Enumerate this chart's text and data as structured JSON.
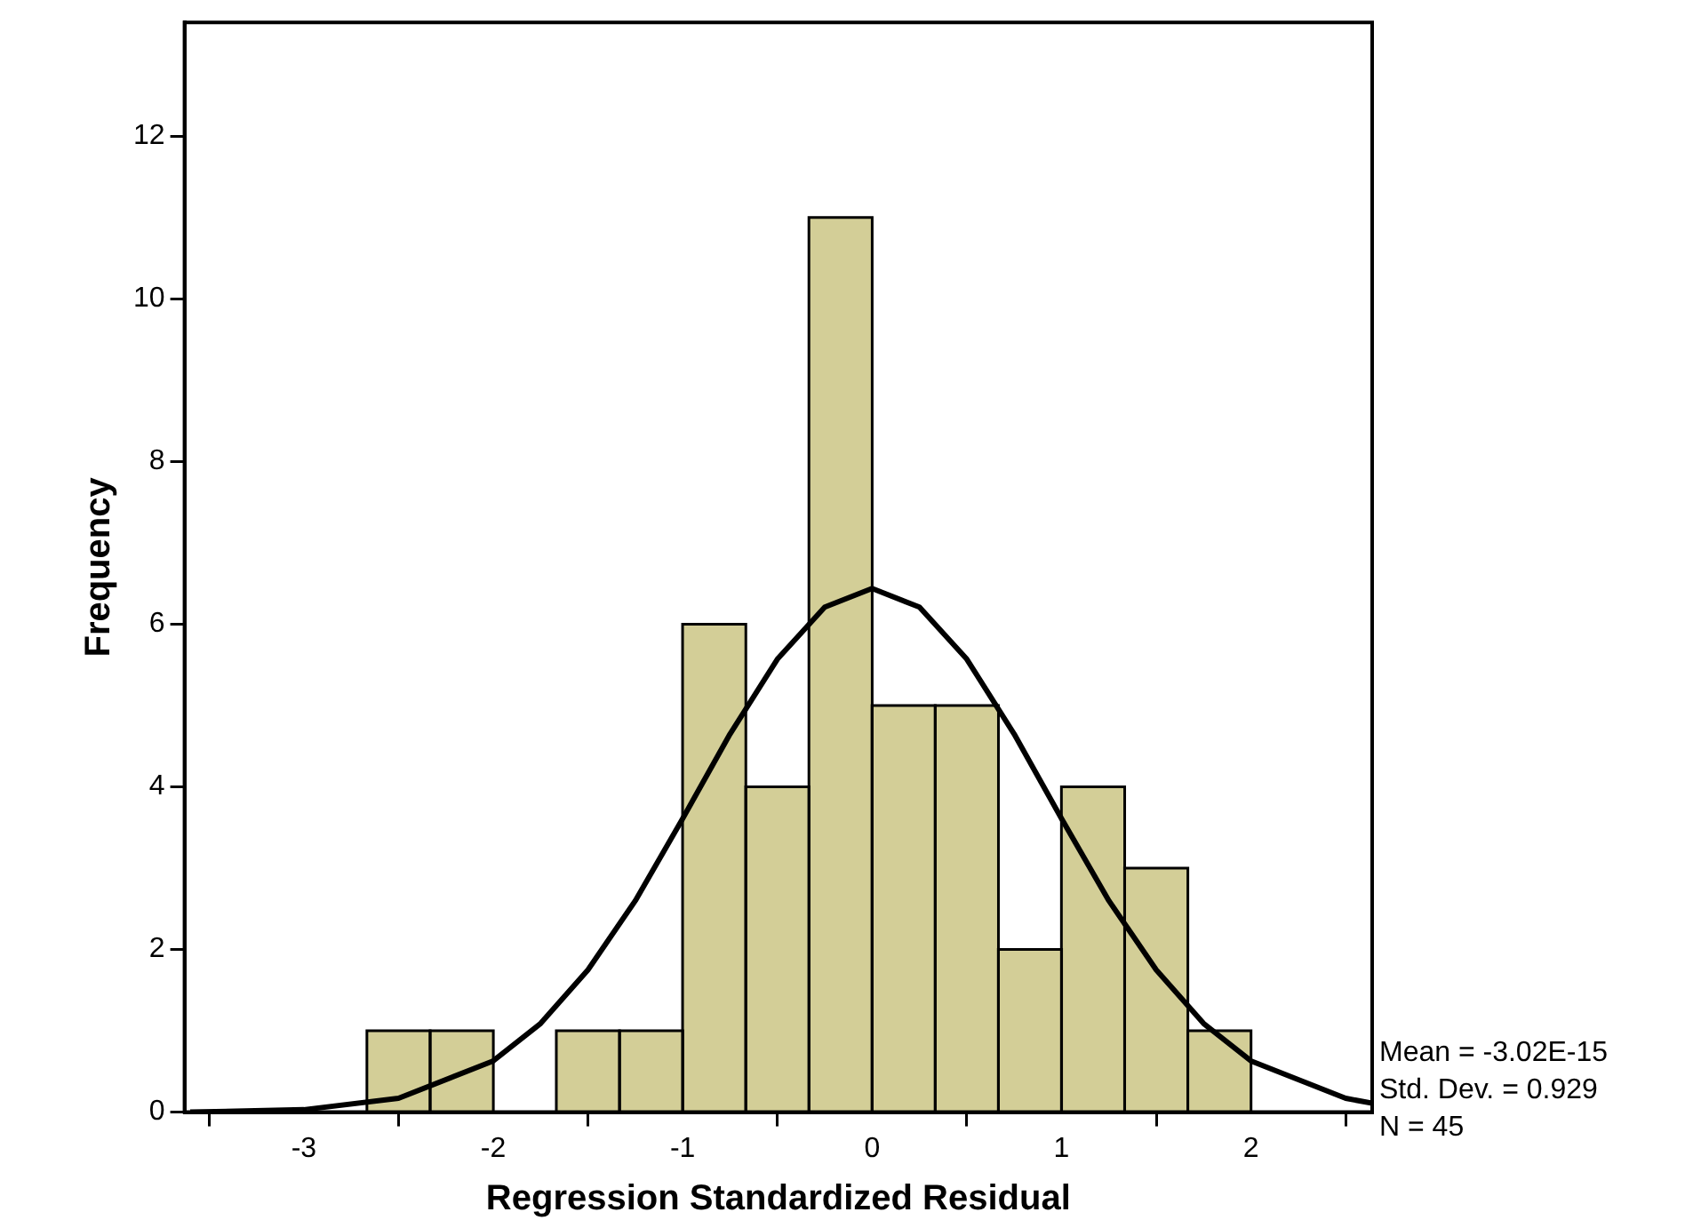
{
  "chart_data": {
    "type": "histogram",
    "xlabel": "Regression Standardized Residual",
    "ylabel": "Frequency",
    "bins": [
      -2.667,
      -2.333,
      -2,
      -1.667,
      -1.333,
      -1,
      -0.667,
      -0.333,
      0,
      0.333,
      0.667,
      1,
      1.333,
      1.667,
      2
    ],
    "series": [
      {
        "color": "#d3ce97",
        "values": [
          1,
          1,
          0,
          1,
          1,
          6,
          4,
          11,
          5,
          5,
          2,
          4,
          3,
          1
        ]
      },
      {
        "type": "line",
        "color": "#000000",
        "x": [
          -3.6,
          -3,
          -2.5,
          -2,
          -1.75,
          -1.5,
          -1.25,
          -1,
          -0.75,
          -0.5,
          -0.25,
          0,
          0.25,
          0.5,
          0.75,
          1,
          1.25,
          1.5,
          1.75,
          2,
          2.5,
          2.64
        ],
        "values": [
          0,
          0.03,
          0.17,
          0.63,
          1.09,
          1.75,
          2.6,
          3.61,
          4.65,
          5.57,
          6.21,
          6.44,
          6.21,
          5.57,
          4.65,
          3.61,
          2.6,
          1.75,
          1.09,
          0.63,
          0.17,
          0.11
        ]
      }
    ],
    "xlim": [
      -3.63,
      2.64
    ],
    "xticks": [
      -3,
      -2,
      -1,
      0,
      1,
      2
    ],
    "ylim": [
      0,
      13.4
    ],
    "yticks": [
      0,
      2,
      4,
      6,
      8,
      10,
      12
    ],
    "grid": false,
    "legend": false,
    "marker": "none",
    "line_style": "solid",
    "annotations": [
      "Mean = -3.02E-15",
      "Std. Dev. = 0.929",
      "N = 45"
    ]
  }
}
